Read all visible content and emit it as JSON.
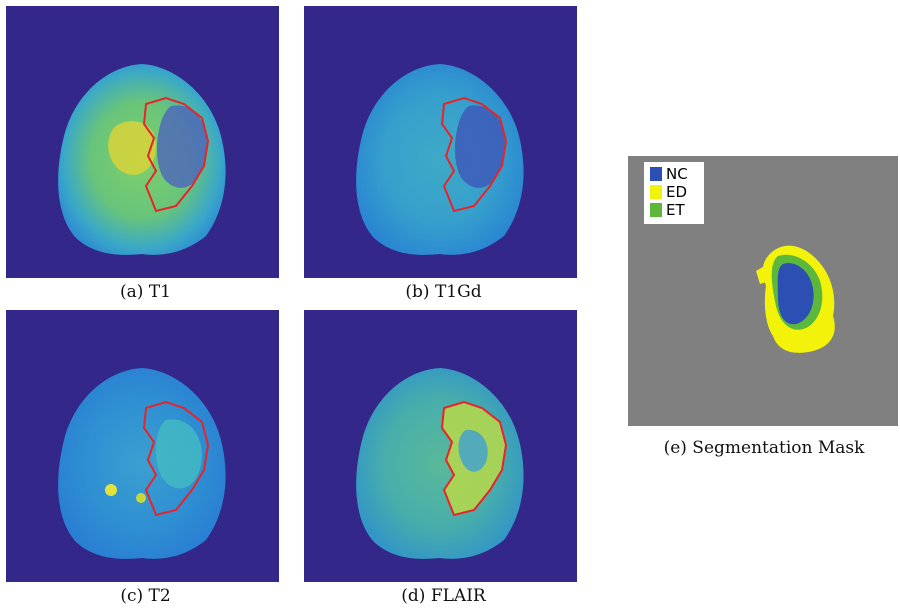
{
  "panels": [
    {
      "caption": "(a) T1",
      "modality": "T1"
    },
    {
      "caption": "(b) T1Gd",
      "modality": "T1Gd"
    },
    {
      "caption": "(c) T2",
      "modality": "T2"
    },
    {
      "caption": "(d) FLAIR",
      "modality": "FLAIR"
    }
  ],
  "segmentation": {
    "caption": "(e) Segmentation Mask",
    "legend": [
      {
        "label": "NC",
        "color": "#2b4fb3"
      },
      {
        "label": "ED",
        "color": "#f2f20a"
      },
      {
        "label": "ET",
        "color": "#5cb83a"
      }
    ],
    "background_color": "#808080"
  },
  "colors": {
    "scan_background": "#33278a",
    "tumor_outline": "#e8232a"
  }
}
